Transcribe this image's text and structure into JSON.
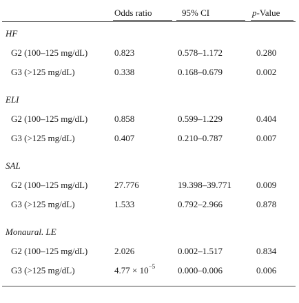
{
  "header": {
    "odds_ratio": "Odds ratio",
    "ci": "95% CI",
    "p_italic": "p",
    "p_rest": "-Value"
  },
  "groups": [
    {
      "name": "HF",
      "rows": [
        {
          "label": "G2 (100–125 mg/dL)",
          "or": "0.823",
          "ci": "0.578–1.172",
          "p": "0.280"
        },
        {
          "label": "G3 (>125 mg/dL)",
          "or": "0.338",
          "ci": "0.168–0.679",
          "p": "0.002"
        }
      ]
    },
    {
      "name": "ELI",
      "rows": [
        {
          "label": "G2 (100–125 mg/dL)",
          "or": "0.858",
          "ci": "0.599–1.229",
          "p": "0.404"
        },
        {
          "label": "G3 (>125 mg/dL)",
          "or": "0.407",
          "ci": "0.210–0.787",
          "p": "0.007"
        }
      ]
    },
    {
      "name": "SAL",
      "rows": [
        {
          "label": "G2 (100–125 mg/dL)",
          "or": "27.776",
          "ci": "19.398–39.771",
          "p": "0.009"
        },
        {
          "label": "G3 (>125 mg/dL)",
          "or": "1.533",
          "ci": "0.792–2.966",
          "p": "0.878"
        }
      ]
    },
    {
      "name": "Monaural. LE",
      "rows": [
        {
          "label": "G2 (100–125 mg/dL)",
          "or": "2.026",
          "ci": "0.002–1.517",
          "p": "0.834"
        },
        {
          "label": "G3 (>125 mg/dL)",
          "or_base": "4.77 × 10",
          "or_exp": "−5",
          "ci": "0.000–0.006",
          "p": "0.006"
        }
      ]
    }
  ]
}
